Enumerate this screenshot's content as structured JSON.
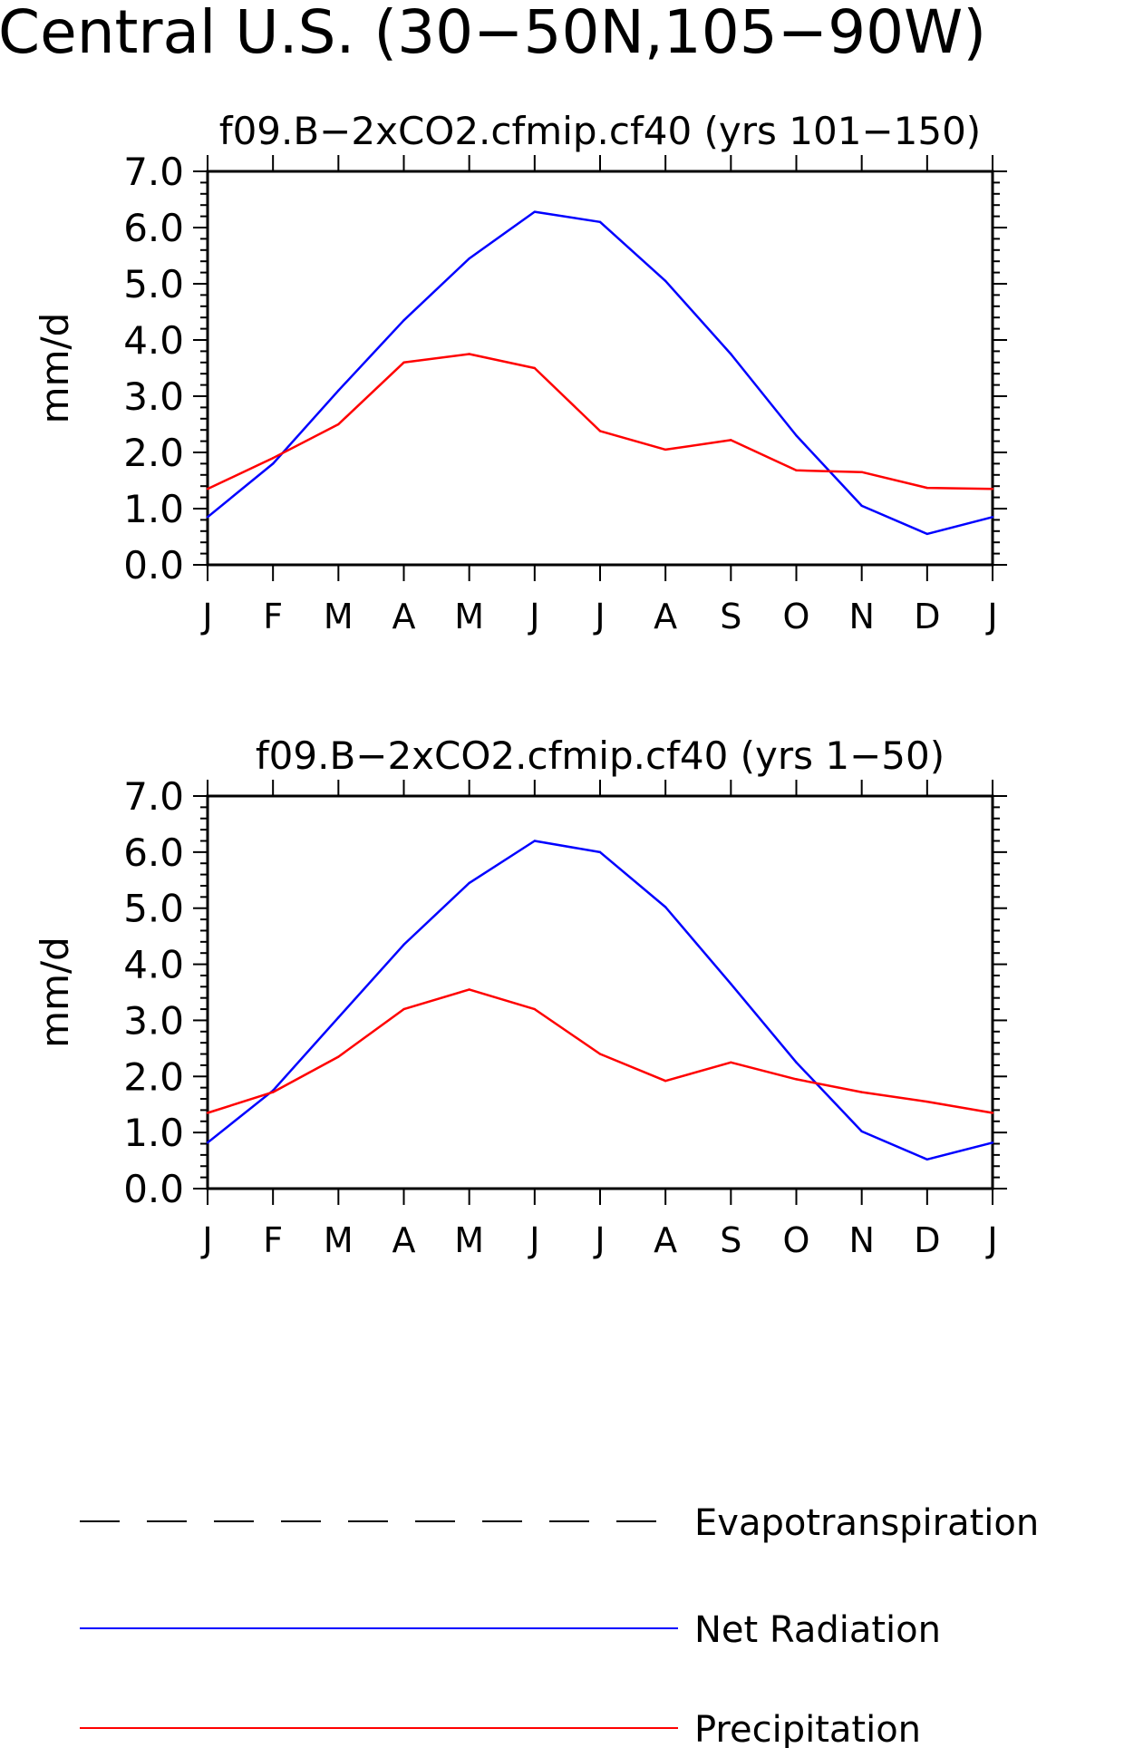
{
  "page_title": "Central U.S. (30−50N,105−90W)",
  "legend": [
    {
      "label": "Evapotranspiration",
      "color": "#000000",
      "dash": true
    },
    {
      "label": "Net Radiation",
      "color": "#0000ff",
      "dash": false
    },
    {
      "label": "Precipitation",
      "color": "#ff0000",
      "dash": false
    }
  ],
  "chart_data": [
    {
      "type": "line",
      "title": "f09.B−2xCO2.cfmip.cf40 (yrs 101−150)",
      "ylabel": "mm/d",
      "xlabel": "",
      "ylim": [
        0,
        7
      ],
      "yticks": [
        "0.0",
        "1.0",
        "2.0",
        "3.0",
        "4.0",
        "5.0",
        "6.0",
        "7.0"
      ],
      "categories": [
        "J",
        "F",
        "M",
        "A",
        "M",
        "J",
        "J",
        "A",
        "S",
        "O",
        "N",
        "D",
        "J"
      ],
      "grid": false,
      "series": [
        {
          "name": "Net Radiation",
          "color": "#0000ff",
          "values": [
            0.85,
            1.8,
            3.1,
            4.35,
            5.45,
            6.28,
            6.1,
            5.05,
            3.75,
            2.3,
            1.05,
            0.55,
            0.85
          ]
        },
        {
          "name": "Precipitation",
          "color": "#ff0000",
          "values": [
            1.35,
            1.9,
            2.5,
            3.6,
            3.75,
            3.5,
            2.38,
            2.05,
            2.22,
            1.68,
            1.65,
            1.37,
            1.35
          ]
        }
      ]
    },
    {
      "type": "line",
      "title": "f09.B−2xCO2.cfmip.cf40 (yrs 1−50)",
      "ylabel": "mm/d",
      "xlabel": "",
      "ylim": [
        0,
        7
      ],
      "yticks": [
        "0.0",
        "1.0",
        "2.0",
        "3.0",
        "4.0",
        "5.0",
        "6.0",
        "7.0"
      ],
      "categories": [
        "J",
        "F",
        "M",
        "A",
        "M",
        "J",
        "J",
        "A",
        "S",
        "O",
        "N",
        "D",
        "J"
      ],
      "grid": false,
      "series": [
        {
          "name": "Net Radiation",
          "color": "#0000ff",
          "values": [
            0.82,
            1.75,
            3.05,
            4.35,
            5.45,
            6.2,
            6.0,
            5.02,
            3.65,
            2.25,
            1.02,
            0.52,
            0.82
          ]
        },
        {
          "name": "Precipitation",
          "color": "#ff0000",
          "values": [
            1.35,
            1.72,
            2.35,
            3.2,
            3.55,
            3.2,
            2.4,
            1.92,
            2.25,
            1.95,
            1.72,
            1.55,
            1.35
          ]
        }
      ]
    }
  ]
}
